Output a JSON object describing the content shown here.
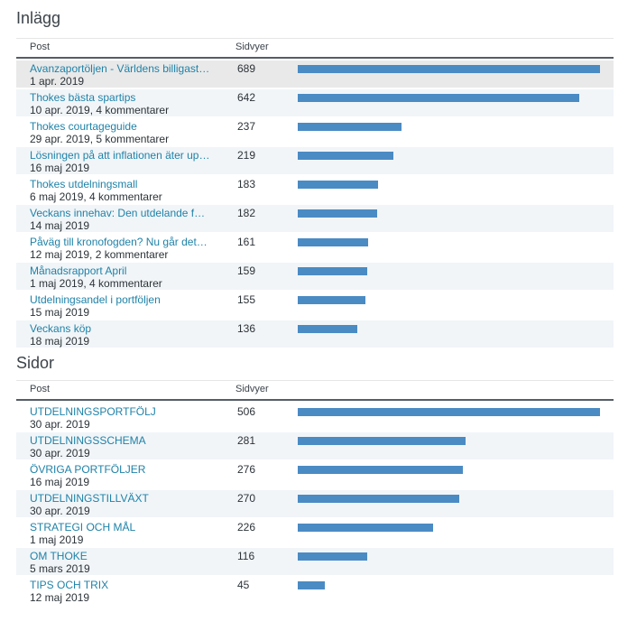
{
  "posts": {
    "heading": "Inlägg",
    "col_post": "Post",
    "col_views": "Sidvyer",
    "max": 689,
    "rows": [
      {
        "title": "Avanzaportöljen - Världens billigast…",
        "meta": "1 apr. 2019",
        "views": 689
      },
      {
        "title": "Thokes bästa spartips",
        "meta": "10 apr. 2019, 4 kommentarer",
        "views": 642
      },
      {
        "title": "Thokes courtageguide",
        "meta": "29 apr. 2019, 5 kommentarer",
        "views": 237
      },
      {
        "title": "Lösningen på att inflationen äter up…",
        "meta": "16 maj 2019",
        "views": 219
      },
      {
        "title": "Thokes utdelningsmall",
        "meta": "6 maj 2019, 4 kommentarer",
        "views": 183
      },
      {
        "title": "Veckans innehav: Den utdelande fo…",
        "meta": "14 maj 2019",
        "views": 182
      },
      {
        "title": "Påväg till kronofogden? Nu går det …",
        "meta": "12 maj 2019, 2 kommentarer",
        "views": 161
      },
      {
        "title": "Månadsrapport April",
        "meta": "1 maj 2019, 4 kommentarer",
        "views": 159
      },
      {
        "title": "Utdelningsandel i portföljen",
        "meta": "15 maj 2019",
        "views": 155
      },
      {
        "title": "Veckans köp",
        "meta": "18 maj 2019",
        "views": 136
      }
    ]
  },
  "pages": {
    "heading": "Sidor",
    "col_post": "Post",
    "col_views": "Sidvyer",
    "max": 506,
    "rows": [
      {
        "title": "UTDELNINGSPORTFÖLJ",
        "meta": "30 apr. 2019",
        "views": 506
      },
      {
        "title": "UTDELNINGSSCHEMA",
        "meta": "30 apr. 2019",
        "views": 281
      },
      {
        "title": "ÖVRIGA PORTFÖLJER",
        "meta": "16 maj 2019",
        "views": 276
      },
      {
        "title": "UTDELNINGSTILLVÄXT",
        "meta": "30 apr. 2019",
        "views": 270
      },
      {
        "title": "STRATEGI OCH MÅL",
        "meta": "1 maj 2019",
        "views": 226
      },
      {
        "title": "OM THOKE",
        "meta": "5 mars 2019",
        "views": 116
      },
      {
        "title": "TIPS OCH TRIX",
        "meta": "12 maj 2019",
        "views": 45
      }
    ]
  },
  "colors": {
    "bar": "#4a8bc4",
    "link": "#1f82a8"
  }
}
